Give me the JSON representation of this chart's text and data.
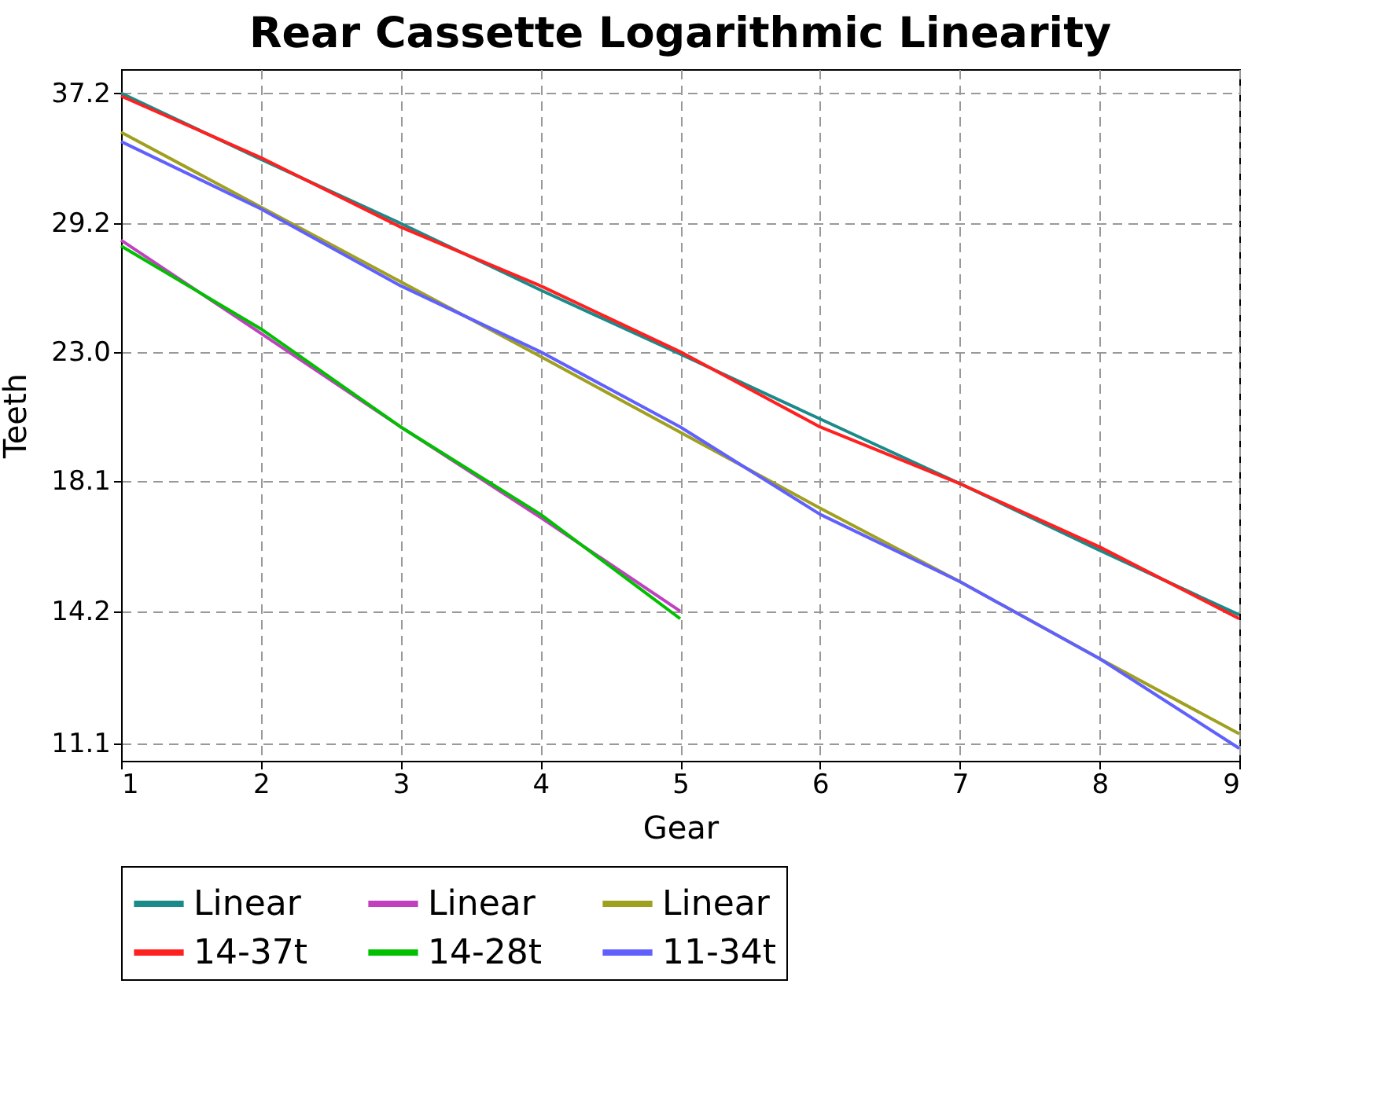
{
  "chart_data": {
    "type": "line",
    "title": "Rear Cassette Logarithmic Linearity",
    "xlabel": "Gear",
    "ylabel": "Teeth",
    "log": "y",
    "grid": true,
    "line_style": "solid",
    "marker": "none",
    "legend": "bottom",
    "xlim": [
      1,
      9
    ],
    "xticks": [
      1,
      2,
      3,
      4,
      5,
      6,
      7,
      8,
      9
    ],
    "ylim": [
      10.75,
      38.9
    ],
    "yticks": [
      11.1,
      14.2,
      18.1,
      {
        "value": 23,
        "label": "23.0"
      },
      29.2,
      37.2
    ],
    "series": [
      {
        "name": "Linear",
        "color": "#1a8a8a",
        "x": [
          1,
          2,
          3,
          4,
          5,
          6,
          7,
          8,
          9
        ],
        "values": [
          37.2,
          32.9,
          29.2,
          25.8,
          22.9,
          20.3,
          18.0,
          15.9,
          14.1
        ]
      },
      {
        "name": "Linear",
        "color": "#c040c0",
        "x": [
          1,
          2,
          3,
          4,
          5
        ],
        "values": [
          28.3,
          23.8,
          20.0,
          16.9,
          14.2
        ]
      },
      {
        "name": "Linear",
        "color": "#a0a020",
        "x": [
          1,
          2,
          3,
          4,
          5,
          6,
          7,
          8,
          9
        ],
        "values": [
          34.6,
          30.1,
          26.2,
          22.8,
          19.8,
          17.2,
          15.0,
          13.0,
          11.3
        ]
      },
      {
        "name": "14-37t",
        "color": "#ff2020",
        "x": [
          1,
          2,
          3,
          4,
          5,
          6,
          7,
          8,
          9
        ],
        "values": [
          37,
          33,
          29,
          26,
          23,
          20,
          18,
          16,
          14
        ]
      },
      {
        "name": "14-28t",
        "color": "#00c000",
        "x": [
          1,
          2,
          3,
          4,
          5
        ],
        "values": [
          28,
          24,
          20,
          17,
          14
        ]
      },
      {
        "name": "11-34t",
        "color": "#6060ff",
        "x": [
          1,
          2,
          3,
          4,
          5,
          6,
          7,
          8,
          9
        ],
        "values": [
          34,
          30,
          26,
          23,
          20,
          17,
          15,
          13,
          11
        ]
      }
    ]
  }
}
